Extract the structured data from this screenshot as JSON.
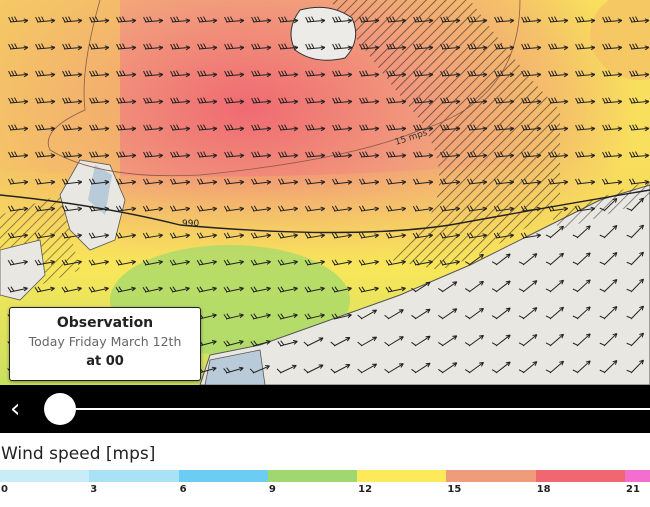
{
  "map": {
    "contour_labels": [
      "15 mps",
      "990"
    ],
    "wind_direction": "west-southwesterly",
    "colors": {
      "land": "#e9e7e1",
      "water": "#b9cbd8",
      "hatch": "#222222"
    }
  },
  "observation": {
    "title": "Observation",
    "date": "Today Friday March 12th",
    "time": "at 00"
  },
  "timeline": {
    "back_icon": "chevron-left-icon",
    "progress": 0.0
  },
  "legend": {
    "title": "Wind speed [mps]",
    "bins": [
      {
        "from": "0",
        "color": "#c9ecf9"
      },
      {
        "from": "3",
        "color": "#a9e1f7"
      },
      {
        "from": "6",
        "color": "#6ccdf4"
      },
      {
        "from": "9",
        "color": "#9fd870"
      },
      {
        "from": "12",
        "color": "#fde95a"
      },
      {
        "from": "15",
        "color": "#ee9c7a"
      },
      {
        "from": "18",
        "color": "#f06671"
      },
      {
        "from": "21",
        "color": "#f46ed0"
      }
    ]
  }
}
